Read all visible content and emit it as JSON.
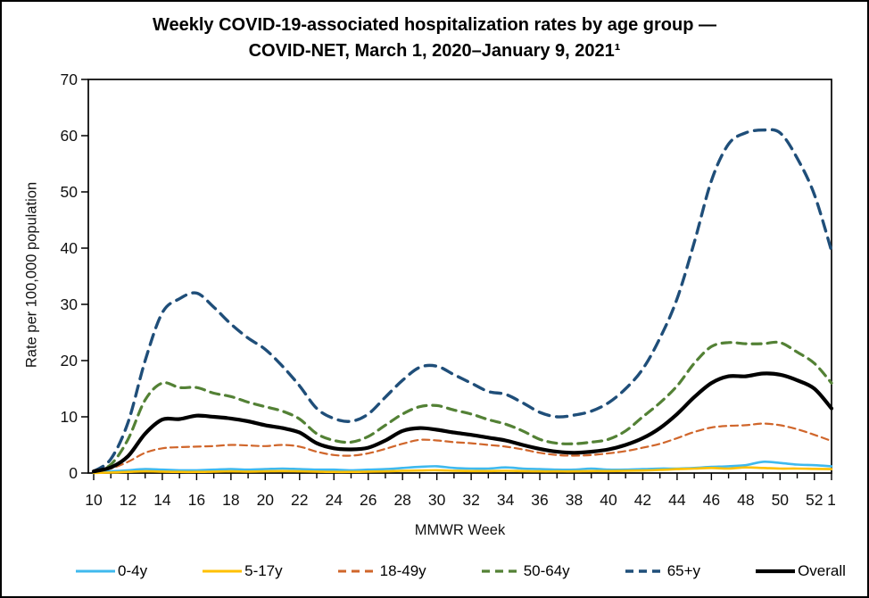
{
  "figure": {
    "title_line1": "Weekly COVID-19-associated hospitalization rates by age group —",
    "title_line2": "COVID-NET, March 1, 2020–January 9, 2021¹"
  },
  "chart_data": {
    "type": "line",
    "title": "Weekly COVID-19-associated hospitalization rates by age group — COVID-NET, March 1, 2020–January 9, 2021",
    "footnote_superscript": "1",
    "xlabel": "MMWR Week",
    "ylabel": "Rate per 100,000 population",
    "ylim": [
      0,
      70
    ],
    "y_ticks": [
      0,
      10,
      20,
      30,
      40,
      50,
      60,
      70
    ],
    "grid": "off",
    "legend_position": "bottom",
    "x_weeks": [
      "10",
      "11",
      "12",
      "13",
      "14",
      "15",
      "16",
      "17",
      "18",
      "19",
      "20",
      "21",
      "22",
      "23",
      "24",
      "25",
      "26",
      "27",
      "28",
      "29",
      "30",
      "31",
      "32",
      "33",
      "34",
      "35",
      "36",
      "37",
      "38",
      "39",
      "40",
      "41",
      "42",
      "43",
      "44",
      "45",
      "46",
      "47",
      "48",
      "49",
      "50",
      "51",
      "52",
      "1"
    ],
    "x_tick_labels_shown": [
      "10",
      "12",
      "14",
      "16",
      "18",
      "20",
      "22",
      "24",
      "26",
      "28",
      "30",
      "32",
      "34",
      "36",
      "38",
      "40",
      "42",
      "44",
      "46",
      "48",
      "50",
      "52",
      "1"
    ],
    "series": [
      {
        "id": "0-4y",
        "label": "0-4y",
        "color": "#3FB9EE",
        "dash": null,
        "width": 2.6,
        "values": [
          0.1,
          0.3,
          0.5,
          0.7,
          0.6,
          0.5,
          0.5,
          0.6,
          0.7,
          0.6,
          0.7,
          0.8,
          0.7,
          0.6,
          0.6,
          0.5,
          0.6,
          0.7,
          0.9,
          1.1,
          1.2,
          0.9,
          0.8,
          0.8,
          1.0,
          0.8,
          0.7,
          0.6,
          0.6,
          0.8,
          0.6,
          0.6,
          0.7,
          0.8,
          0.8,
          0.9,
          1.1,
          1.2,
          1.4,
          2.0,
          1.8,
          1.5,
          1.4,
          1.2
        ]
      },
      {
        "id": "5-17y",
        "label": "5-17y",
        "color": "#FFC000",
        "dash": null,
        "width": 2.6,
        "values": [
          0.0,
          0.1,
          0.2,
          0.3,
          0.25,
          0.2,
          0.2,
          0.25,
          0.3,
          0.25,
          0.3,
          0.35,
          0.3,
          0.25,
          0.2,
          0.2,
          0.25,
          0.3,
          0.4,
          0.45,
          0.5,
          0.4,
          0.35,
          0.35,
          0.4,
          0.35,
          0.3,
          0.3,
          0.3,
          0.35,
          0.35,
          0.4,
          0.45,
          0.55,
          0.7,
          0.8,
          0.9,
          0.8,
          1.0,
          0.9,
          0.8,
          0.8,
          0.75,
          0.7
        ]
      },
      {
        "id": "18-49y",
        "label": "18-49y",
        "color": "#D0662B",
        "dash": "8,5",
        "width": 2.2,
        "values": [
          0.2,
          0.8,
          2.0,
          3.6,
          4.4,
          4.6,
          4.7,
          4.8,
          5.0,
          4.9,
          4.8,
          5.0,
          4.7,
          3.8,
          3.2,
          3.1,
          3.5,
          4.3,
          5.2,
          5.9,
          5.8,
          5.5,
          5.3,
          5.0,
          4.7,
          4.2,
          3.6,
          3.2,
          3.1,
          3.2,
          3.5,
          3.9,
          4.5,
          5.2,
          6.2,
          7.3,
          8.1,
          8.4,
          8.5,
          8.8,
          8.5,
          7.8,
          6.8,
          5.7
        ]
      },
      {
        "id": "50-64y",
        "label": "50-64y",
        "color": "#538135",
        "dash": "10,7",
        "width": 3.2,
        "values": [
          0.2,
          1.5,
          6.0,
          13.0,
          16.0,
          15.2,
          15.2,
          14.2,
          13.6,
          12.6,
          11.8,
          11.0,
          9.6,
          7.0,
          5.8,
          5.5,
          6.5,
          8.5,
          10.5,
          11.8,
          12.0,
          11.2,
          10.5,
          9.5,
          8.7,
          7.5,
          6.0,
          5.3,
          5.2,
          5.5,
          6.0,
          7.5,
          10.0,
          12.5,
          15.5,
          19.5,
          22.5,
          23.2,
          23.0,
          23.0,
          23.2,
          21.5,
          19.5,
          16.0
        ]
      },
      {
        "id": "65plus",
        "label": "65+y",
        "color": "#1F4E79",
        "dash": "12,8",
        "width": 3.4,
        "values": [
          0.3,
          2.5,
          9.0,
          20.0,
          28.5,
          31.0,
          32.0,
          29.5,
          26.5,
          24.0,
          22.0,
          19.0,
          15.5,
          11.5,
          9.7,
          9.2,
          10.5,
          13.5,
          16.5,
          18.8,
          19.0,
          17.5,
          16.0,
          14.5,
          14.0,
          12.5,
          10.8,
          10.0,
          10.3,
          11.0,
          12.5,
          15.0,
          18.5,
          24.0,
          31.0,
          41.0,
          52.0,
          58.5,
          60.5,
          61.0,
          60.5,
          56.0,
          49.5,
          39.5
        ]
      },
      {
        "id": "overall",
        "label": "Overall",
        "color": "#000000",
        "dash": null,
        "width": 4.2,
        "values": [
          0.3,
          1.0,
          3.0,
          7.0,
          9.5,
          9.6,
          10.2,
          10.0,
          9.7,
          9.2,
          8.5,
          8.0,
          7.2,
          5.3,
          4.4,
          4.2,
          4.5,
          5.8,
          7.5,
          8.0,
          7.7,
          7.2,
          6.8,
          6.3,
          5.8,
          5.0,
          4.3,
          3.8,
          3.6,
          3.8,
          4.2,
          5.0,
          6.2,
          8.0,
          10.5,
          13.5,
          16.0,
          17.2,
          17.2,
          17.7,
          17.5,
          16.5,
          15.0,
          11.5
        ]
      }
    ]
  }
}
